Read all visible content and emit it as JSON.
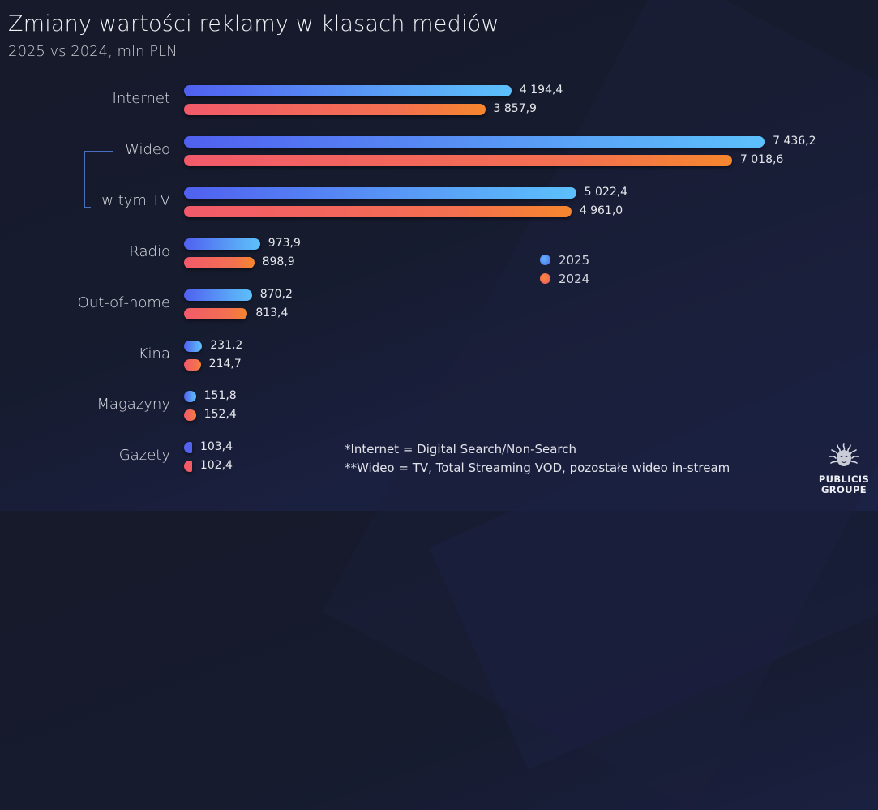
{
  "header": {
    "title": "Zmiany wartości reklamy w klasach mediów",
    "subtitle": "2025 vs 2024, mln PLN"
  },
  "legend": [
    {
      "label": "2025",
      "color": "#5a9cf6"
    },
    {
      "label": "2024",
      "color": "#f3704e"
    }
  ],
  "rows": [
    {
      "label": "Internet",
      "v2025": "4 194,4",
      "v2024": "3 857,9"
    },
    {
      "label": "Wideo",
      "v2025": "7 436,2",
      "v2024": "7 018,6"
    },
    {
      "label": "w tym TV",
      "v2025": "5 022,4",
      "v2024": "4 961,0"
    },
    {
      "label": "Radio",
      "v2025": "973,9",
      "v2024": "898,9"
    },
    {
      "label": "Out-of-home",
      "v2025": "870,2",
      "v2024": "813,4"
    },
    {
      "label": "Kina",
      "v2025": "231,2",
      "v2024": "214,7"
    },
    {
      "label": "Magazyny",
      "v2025": "151,8",
      "v2024": "152,4"
    },
    {
      "label": "Gazety",
      "v2025": "103,4",
      "v2024": "102,4"
    }
  ],
  "footnotes": [
    "*Internet = Digital Search/Non-Search",
    "**Wideo = TV, Total Streaming VOD, pozostałe wideo in-stream"
  ],
  "logo": {
    "line1": "PUBLICIS",
    "line2": "GROUPE"
  },
  "colors": {
    "series_2025_start": "#5060f0",
    "series_2025_end": "#5cc0fb",
    "series_2024_start": "#f25a6a",
    "series_2024_end": "#f6862e",
    "background": "#161a2e"
  },
  "chart_data": {
    "type": "bar",
    "orientation": "horizontal",
    "title": "Zmiany wartości reklamy w klasach mediów",
    "subtitle": "2025 vs 2024, mln PLN",
    "xlabel": "",
    "ylabel": "",
    "unit": "mln PLN",
    "categories": [
      "Internet",
      "Wideo",
      "w tym TV",
      "Radio",
      "Out-of-home",
      "Kina",
      "Magazyny",
      "Gazety"
    ],
    "series": [
      {
        "name": "2025",
        "values": [
          4194.4,
          7436.2,
          5022.4,
          973.9,
          870.2,
          231.2,
          151.8,
          103.4
        ]
      },
      {
        "name": "2024",
        "values": [
          3857.9,
          7018.6,
          4961.0,
          898.9,
          813.4,
          214.7,
          152.4,
          102.4
        ]
      }
    ],
    "legend_position": "inside-right-middle",
    "grid": false,
    "annotations": [
      "*Internet = Digital Search/Non-Search",
      "**Wideo = TV, Total Streaming VOD, pozostałe wideo in-stream",
      "w tym TV is a subset of Wideo (bracket)"
    ]
  }
}
